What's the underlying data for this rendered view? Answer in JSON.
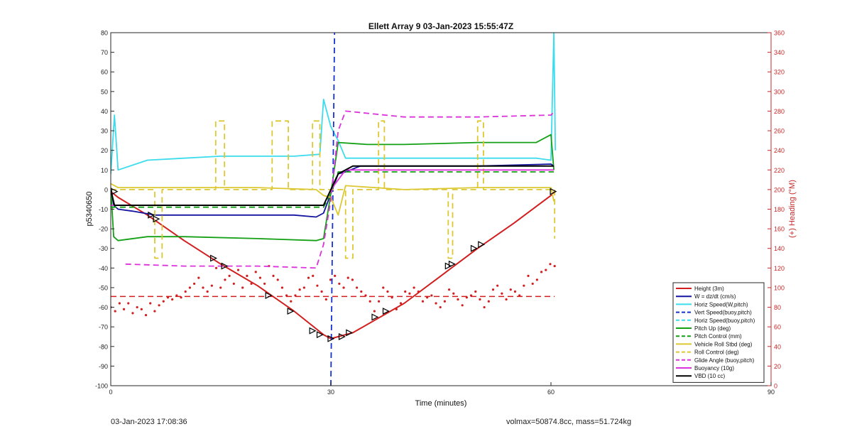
{
  "chart_data": {
    "type": "line",
    "title": "Ellett Array 9 03-Jan-2023 15:55:47Z",
    "xlabel": "Time (minutes)",
    "ylabel": "p5340650",
    "y2label": "(+) Heading (°M)",
    "xlim": [
      0,
      90
    ],
    "ylim": [
      -100,
      80
    ],
    "y2lim": [
      0,
      360
    ],
    "xticks": [
      "0",
      "30",
      "60",
      "90"
    ],
    "yticks": [
      "-100",
      "-90",
      "-80",
      "-70",
      "-60",
      "-50",
      "-40",
      "-30",
      "-20",
      "-10",
      "0",
      "10",
      "20",
      "30",
      "40",
      "50",
      "60",
      "70",
      "80"
    ],
    "y2ticks": [
      "0",
      "20",
      "40",
      "60",
      "80",
      "100",
      "120",
      "140",
      "160",
      "180",
      "200",
      "220",
      "240",
      "260",
      "280",
      "300",
      "320",
      "340",
      "360"
    ],
    "grid": false,
    "legend_position": "bottom-right",
    "colors": {
      "red": "#d21e1e",
      "blue": "#1414a0",
      "cyan": "#3cdcec",
      "vblue": "#1432d2",
      "green": "#14a014",
      "yellow": "#dcc832",
      "magenta": "#dc32dc",
      "black": "#000000"
    },
    "series": [
      {
        "name": "Height (3m)",
        "color": "red",
        "dash": false,
        "x": [
          0,
          1,
          5,
          10,
          15,
          20,
          25,
          28,
          29,
          30,
          31,
          33,
          40,
          45,
          50,
          55,
          60,
          60.5
        ],
        "y": [
          -1,
          -4,
          -13,
          -26,
          -38,
          -49,
          -62,
          -71,
          -74,
          -76,
          -75,
          -73,
          -58,
          -44,
          -30,
          -17,
          -3,
          -1
        ]
      },
      {
        "name": "W = dz/dt (cm/s)",
        "color": "blue",
        "dash": false,
        "x": [
          0,
          0.4,
          1,
          3,
          6,
          10,
          15,
          20,
          25,
          28,
          29,
          30,
          31,
          32,
          34,
          40,
          50,
          60,
          60.4
        ],
        "y": [
          1,
          -8,
          -10,
          -11,
          -13,
          -13,
          -13,
          -13,
          -13,
          -14,
          -12,
          -2,
          8,
          9,
          12,
          12,
          12,
          13,
          12
        ]
      },
      {
        "name": "Horiz Speed(W,pitch)",
        "color": "cyan",
        "dash": false,
        "x": [
          0,
          0.5,
          1,
          5,
          10,
          15,
          20,
          25,
          28.5,
          29,
          30,
          31,
          32,
          40,
          50,
          58,
          60,
          60.4,
          60.6
        ],
        "y": [
          8,
          38,
          10,
          15,
          16,
          17,
          17,
          17,
          18,
          46,
          32,
          25,
          16,
          16,
          16,
          16,
          15,
          80,
          20
        ]
      },
      {
        "name": "Vert Speed(buoy,pitch)",
        "color": "vblue",
        "dash": true,
        "x": [
          30,
          30.5
        ],
        "y": [
          -100,
          80
        ]
      },
      {
        "name": "Horiz Speed(buoy,pitch)",
        "color": "cyan",
        "dash": true,
        "x": [],
        "y": []
      },
      {
        "name": "Pitch Up (deg)",
        "color": "green",
        "dash": false,
        "x": [
          0,
          0.4,
          1,
          5,
          10,
          20,
          28,
          29,
          30,
          31,
          35,
          40,
          50,
          58,
          60,
          60.4
        ],
        "y": [
          1,
          -24,
          -26,
          -24,
          -24,
          -25,
          -26,
          -25,
          -2,
          24,
          23,
          23,
          24,
          24,
          28,
          10
        ]
      },
      {
        "name": "Pitch Control (mm)",
        "color": "green",
        "dash": true,
        "x": [
          0,
          29,
          30,
          31,
          60.4
        ],
        "y": [
          -9,
          -9,
          -2,
          9,
          9
        ]
      },
      {
        "name": "Vehicle Roll Stbd (deg)",
        "color": "yellow",
        "dash": false,
        "x": [
          0,
          1,
          10,
          20,
          28,
          29,
          30,
          31,
          32,
          40,
          50,
          60,
          60.4
        ],
        "y": [
          3,
          1,
          1,
          1,
          0,
          -3,
          -4,
          -13,
          2,
          0,
          1,
          1,
          -6
        ]
      },
      {
        "name": "Roll Control (deg)",
        "color": "yellow",
        "dash": true,
        "x": [
          0,
          6,
          6,
          7,
          7,
          14.3,
          14.3,
          15.5,
          15.5,
          22,
          22,
          24.2,
          24.2,
          27.5,
          27.5,
          28.5,
          28.5,
          32,
          32,
          33,
          33,
          36.5,
          36.5,
          37.3,
          37.3,
          46,
          46,
          46.6,
          46.6,
          50,
          50,
          50.8,
          50.8,
          60.5,
          60.5
        ],
        "y": [
          0,
          0,
          -35,
          -35,
          0,
          0,
          35,
          35,
          0,
          0,
          35,
          35,
          0,
          0,
          35,
          35,
          0,
          0,
          -35,
          -35,
          0,
          0,
          35,
          35,
          0,
          0,
          -35,
          -35,
          0,
          0,
          35,
          35,
          0,
          0,
          -25
        ]
      },
      {
        "name": "Glide Angle (buoy,pitch)",
        "color": "magenta",
        "dash": true,
        "x": [
          2,
          10,
          20,
          28,
          29,
          30,
          31,
          32,
          40,
          50,
          60,
          60.5
        ],
        "y": [
          -38,
          -39,
          -39,
          -40,
          -28,
          -5,
          30,
          40,
          37,
          37,
          38,
          40
        ]
      },
      {
        "name": "Buoyancy (10g)",
        "color": "magenta",
        "dash": false,
        "x": [
          0,
          29,
          30,
          32,
          60.4
        ],
        "y": [
          -8,
          -8,
          0,
          10,
          10
        ]
      },
      {
        "name": "VBD (10 cc)",
        "color": "black",
        "dash": false,
        "x": [
          0,
          0.5,
          29,
          30,
          31,
          33,
          60.4
        ],
        "y": [
          0,
          -8,
          -8,
          0,
          8,
          12,
          12
        ]
      }
    ],
    "extra_lines": {
      "heading_mean_deg": 91,
      "heading_samples_deg": [
        80,
        76,
        84,
        78,
        84,
        74,
        80,
        78,
        72,
        84,
        76,
        82,
        86,
        90,
        88,
        92,
        90,
        96,
        100,
        104,
        110,
        100,
        96,
        102,
        120,
        100,
        108,
        112,
        104,
        118,
        100,
        112,
        104,
        116,
        110,
        104,
        122,
        112,
        108,
        100,
        92,
        86,
        92,
        98,
        100,
        110,
        112,
        102,
        96,
        88,
        108,
        112,
        104,
        100,
        110,
        108,
        100,
        96,
        92,
        86,
        76,
        86,
        100,
        96,
        90,
        78,
        84,
        96,
        94,
        100,
        96,
        86,
        90,
        92,
        84,
        80,
        86,
        98,
        94,
        88,
        82,
        90,
        92,
        96,
        88,
        80,
        86,
        98,
        102,
        94,
        88,
        98,
        96,
        92,
        102,
        112,
        104,
        108,
        116,
        118,
        124,
        122
      ]
    },
    "markers": {
      "x": [
        0.5,
        5.5,
        6.2,
        14,
        15.5,
        21.5,
        24.5,
        27.5,
        28.5,
        30,
        31.5,
        32.5,
        36,
        37.5,
        46,
        46.5,
        49.5,
        50.5,
        60.3
      ],
      "y": [
        -1,
        -13,
        -15,
        -35,
        -39,
        -54,
        -62,
        -72,
        -74,
        -76,
        -75,
        -73,
        -65,
        -62,
        -39,
        -38,
        -30,
        -28,
        -1
      ]
    }
  },
  "footer": {
    "timestamp": "03-Jan-2023 17:08:36",
    "info": "volmax=50874.8cc, mass=51.724kg"
  }
}
